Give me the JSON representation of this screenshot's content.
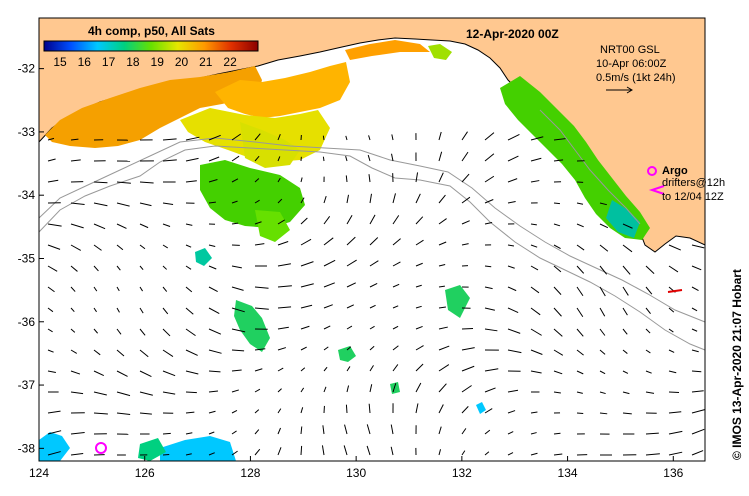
{
  "map": {
    "lon_range": [
      124,
      136.6
    ],
    "lat_range": [
      -38.2,
      -31.2
    ],
    "x_ticks": [
      "124",
      "126",
      "128",
      "130",
      "132",
      "134",
      "136"
    ],
    "y_ticks": [
      "-32",
      "-33",
      "-34",
      "-35",
      "-36",
      "-37",
      "-38"
    ],
    "land_color": "#ffc890",
    "shelf_contour_color": "#999999"
  },
  "colorbar": {
    "title": "4h comp, p50, All Sats",
    "labels": [
      "15",
      "16",
      "17",
      "18",
      "19",
      "20",
      "21",
      "22"
    ],
    "colors": [
      "#00008b",
      "#0050ff",
      "#00c8ff",
      "#00d080",
      "#66e000",
      "#e6e600",
      "#ff9900",
      "#e03000",
      "#8b0000"
    ]
  },
  "title": "12-Apr-2020 00Z",
  "current_info": {
    "line1": "NRT00 GSL",
    "line2": "10-Apr 06:00Z",
    "line3": "0.5m/s (1kt 24h)"
  },
  "legend": {
    "argo_label": "Argo",
    "drifters_line1": "drifters@12h",
    "drifters_line2": "to 12/04 12Z",
    "argo_color": "#ff00ff"
  },
  "credit": "© IMOS 13-Apr-2020 21:07 Hobart"
}
